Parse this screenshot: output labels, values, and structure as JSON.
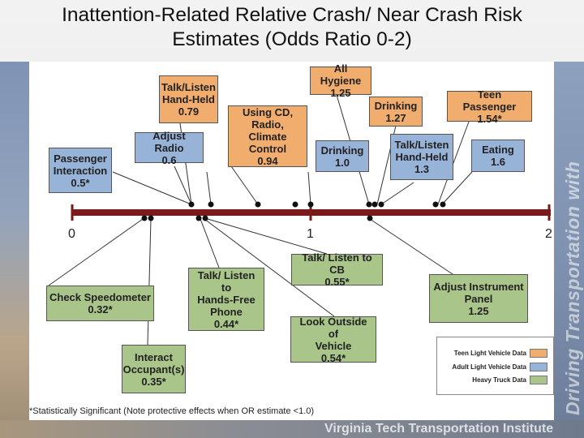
{
  "title": {
    "line1": "Inattention-Related Relative Crash/ Near Crash Risk",
    "line2": "Estimates (Odds Ratio 0-2)"
  },
  "colors": {
    "teen": "#f1ad6d",
    "adult": "#98b3d8",
    "truck": "#a9c58a",
    "axis": "#7a1a1a"
  },
  "axis": {
    "ticks": [
      "0",
      "1",
      "2"
    ],
    "range": [
      0,
      2
    ]
  },
  "boxes": {
    "talk_listen_handheld_teen": {
      "lines": [
        "Talk/Listen",
        "Hand-Held",
        "0.79"
      ]
    },
    "all_hygiene": {
      "lines": [
        "All Hygiene",
        "1.25"
      ]
    },
    "using_cd": {
      "lines": [
        "Using CD,",
        "Radio, Climate",
        "Control",
        "0.94"
      ]
    },
    "drinking_teen": {
      "lines": [
        "Drinking",
        "1.27"
      ]
    },
    "teen_passenger": {
      "lines": [
        "Teen Passenger",
        "1.54*"
      ]
    },
    "adjust_radio": {
      "lines": [
        "Adjust Radio",
        "0.6"
      ]
    },
    "passenger_interaction": {
      "lines": [
        "Passenger",
        "Interaction",
        "0.5*"
      ]
    },
    "drinking_adult": {
      "lines": [
        "Drinking",
        "1.0"
      ]
    },
    "talk_listen_handheld_adult": {
      "lines": [
        "Talk/Listen",
        "Hand-Held",
        "1.3"
      ]
    },
    "eating": {
      "lines": [
        "Eating",
        "1.6"
      ]
    },
    "talk_listen_cb": {
      "lines": [
        "Talk/ Listen to CB",
        "0.55*"
      ]
    },
    "talk_listen_handsfree": {
      "lines": [
        "Talk/ Listen to",
        "Hands-Free",
        "Phone",
        "0.44*"
      ]
    },
    "check_speedometer": {
      "lines": [
        "Check Speedometer",
        "0.32*"
      ]
    },
    "adjust_instrument_panel": {
      "lines": [
        "Adjust Instrument",
        "Panel",
        "1.25"
      ]
    },
    "look_outside": {
      "lines": [
        "Look Outside of",
        "Vehicle",
        "0.54*"
      ]
    },
    "interact_occupant": {
      "lines": [
        "Interact",
        "Occupant(s)",
        "0.35*"
      ]
    }
  },
  "legend": {
    "teen": "Teen Light Vehicle Data",
    "adult": "Adult Light Vehicle Data",
    "truck": "Heavy Truck Data"
  },
  "footnote": "*Statistically Significant (Note protective effects when OR estimate <1.0)",
  "footer": "Virginia Tech Transportation Institute",
  "sidebar": "Driving Transportation with Technology"
}
